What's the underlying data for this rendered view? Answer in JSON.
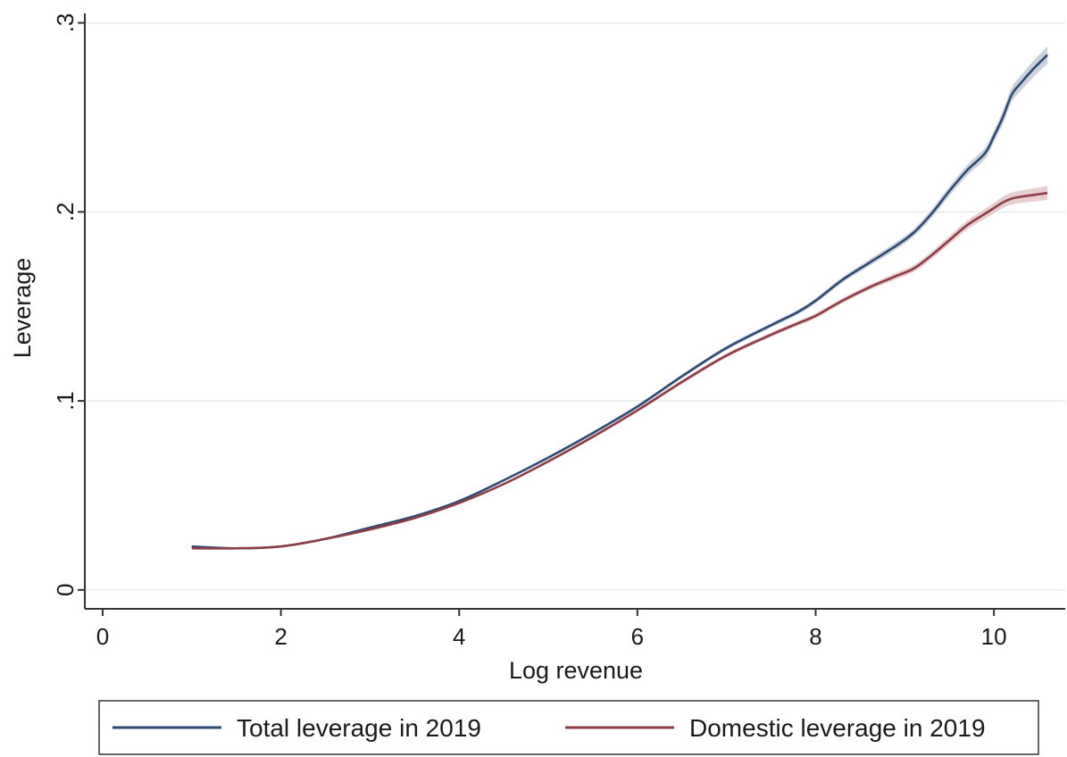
{
  "chart_data": {
    "type": "line",
    "title": "",
    "xlabel": "Log revenue",
    "ylabel": "Leverage",
    "xlim": [
      -0.2,
      10.8
    ],
    "ylim": [
      -0.01,
      0.305
    ],
    "x_ticks": [
      0,
      2,
      4,
      6,
      8,
      10
    ],
    "x_tick_labels": [
      "0",
      "2",
      "4",
      "6",
      "8",
      "10"
    ],
    "y_ticks": [
      0,
      0.1,
      0.2,
      0.3
    ],
    "y_tick_labels": [
      "0",
      ".1",
      ".2",
      ".3"
    ],
    "grid": "horizontal",
    "legend_position": "bottom",
    "series": [
      {
        "name": "Total leverage in 2019",
        "color": "#2e4a73",
        "band_color": "#c3cad6",
        "x": [
          1.0,
          1.5,
          2.0,
          2.5,
          3.0,
          3.5,
          4.0,
          4.5,
          5.0,
          5.5,
          6.0,
          6.5,
          7.0,
          7.5,
          7.8,
          8.0,
          8.3,
          8.6,
          8.9,
          9.1,
          9.3,
          9.5,
          9.7,
          9.9,
          10.0,
          10.1,
          10.2,
          10.3,
          10.45,
          10.6
        ],
        "y": [
          0.023,
          0.022,
          0.023,
          0.027,
          0.033,
          0.039,
          0.047,
          0.058,
          0.07,
          0.083,
          0.097,
          0.113,
          0.128,
          0.14,
          0.147,
          0.153,
          0.164,
          0.173,
          0.182,
          0.189,
          0.199,
          0.211,
          0.222,
          0.231,
          0.24,
          0.25,
          0.262,
          0.268,
          0.276,
          0.283
        ],
        "band": [
          0.0005,
          0.0005,
          0.0005,
          0.0005,
          0.0005,
          0.0005,
          0.0006,
          0.0006,
          0.0007,
          0.0008,
          0.0009,
          0.001,
          0.0011,
          0.0012,
          0.0013,
          0.0014,
          0.0015,
          0.0017,
          0.0019,
          0.002,
          0.0022,
          0.0025,
          0.0028,
          0.003,
          0.0032,
          0.0035,
          0.0038,
          0.004,
          0.0043,
          0.0046
        ]
      },
      {
        "name": "Domestic leverage in 2019",
        "color": "#8f3d45",
        "band_color": "#e2c6c9",
        "x": [
          1.0,
          1.5,
          2.0,
          2.5,
          3.0,
          3.5,
          4.0,
          4.5,
          5.0,
          5.5,
          6.0,
          6.5,
          7.0,
          7.5,
          7.8,
          8.0,
          8.3,
          8.6,
          8.9,
          9.1,
          9.3,
          9.5,
          9.7,
          9.9,
          10.0,
          10.1,
          10.2,
          10.3,
          10.45,
          10.6
        ],
        "y": [
          0.022,
          0.022,
          0.023,
          0.027,
          0.032,
          0.038,
          0.046,
          0.056,
          0.068,
          0.081,
          0.095,
          0.11,
          0.124,
          0.135,
          0.141,
          0.145,
          0.153,
          0.16,
          0.166,
          0.17,
          0.177,
          0.185,
          0.193,
          0.199,
          0.202,
          0.205,
          0.207,
          0.208,
          0.209,
          0.21
        ],
        "band": [
          0.0005,
          0.0005,
          0.0005,
          0.0005,
          0.0005,
          0.0005,
          0.0006,
          0.0006,
          0.0007,
          0.0008,
          0.0009,
          0.001,
          0.0011,
          0.0012,
          0.0013,
          0.0013,
          0.0014,
          0.0015,
          0.0017,
          0.0018,
          0.002,
          0.0022,
          0.0024,
          0.0026,
          0.0028,
          0.003,
          0.0032,
          0.0033,
          0.0035,
          0.0037
        ]
      }
    ]
  }
}
